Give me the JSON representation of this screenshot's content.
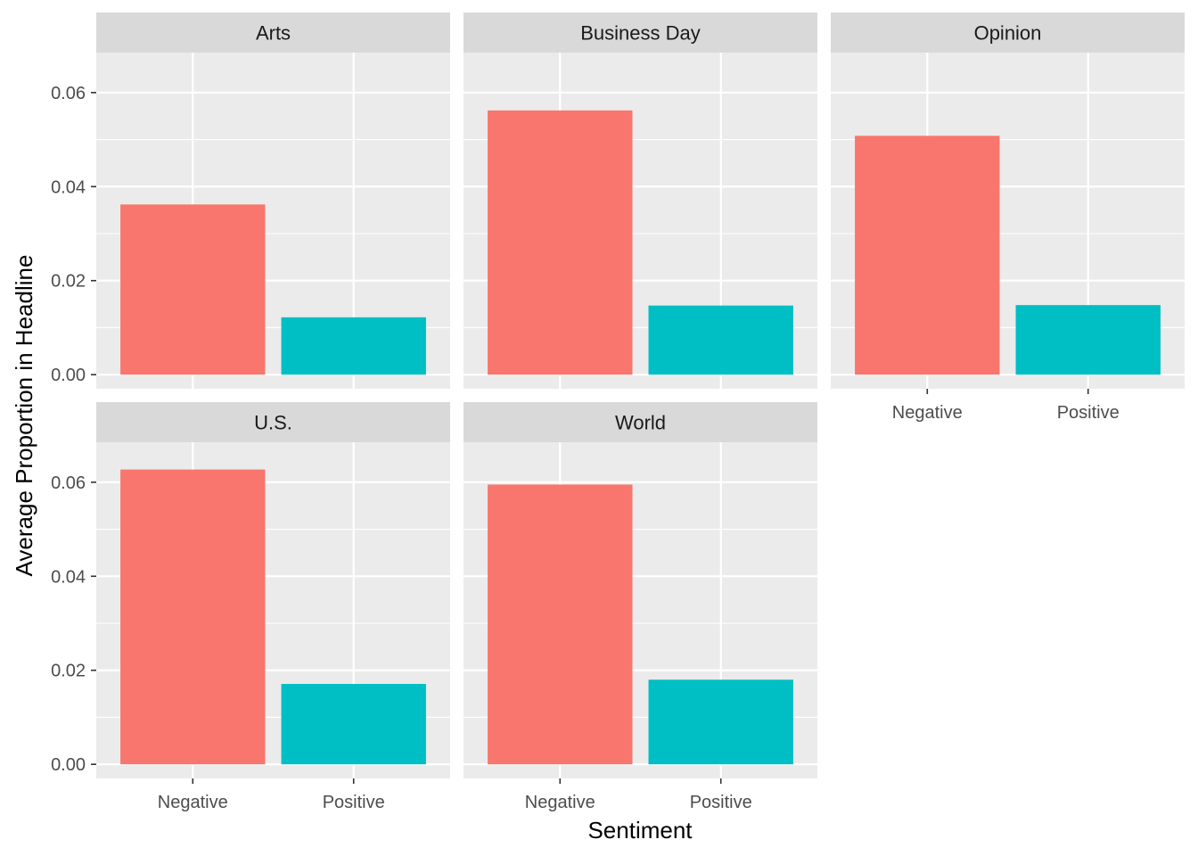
{
  "chart_data": {
    "type": "bar",
    "faceted": true,
    "xlabel": "Sentiment",
    "ylabel": "Average Proportion in Headline",
    "categories": [
      "Negative",
      "Positive"
    ],
    "ylim": [
      -0.003,
      0.0685
    ],
    "y_ticks": [
      0.0,
      0.02,
      0.04,
      0.06
    ],
    "y_tick_labels": [
      "0.00",
      "0.02",
      "0.04",
      "0.06"
    ],
    "grid": true,
    "legend": "none",
    "colors": {
      "Negative": "#F8766D",
      "Positive": "#00BFC4"
    },
    "panels": [
      {
        "name": "Arts",
        "values": [
          0.0362,
          0.0122
        ]
      },
      {
        "name": "Business Day",
        "values": [
          0.0562,
          0.0147
        ]
      },
      {
        "name": "Opinion",
        "values": [
          0.0508,
          0.0148
        ]
      },
      {
        "name": "U.S.",
        "values": [
          0.0627,
          0.0171
        ]
      },
      {
        "name": "World",
        "values": [
          0.0595,
          0.018
        ]
      }
    ]
  }
}
